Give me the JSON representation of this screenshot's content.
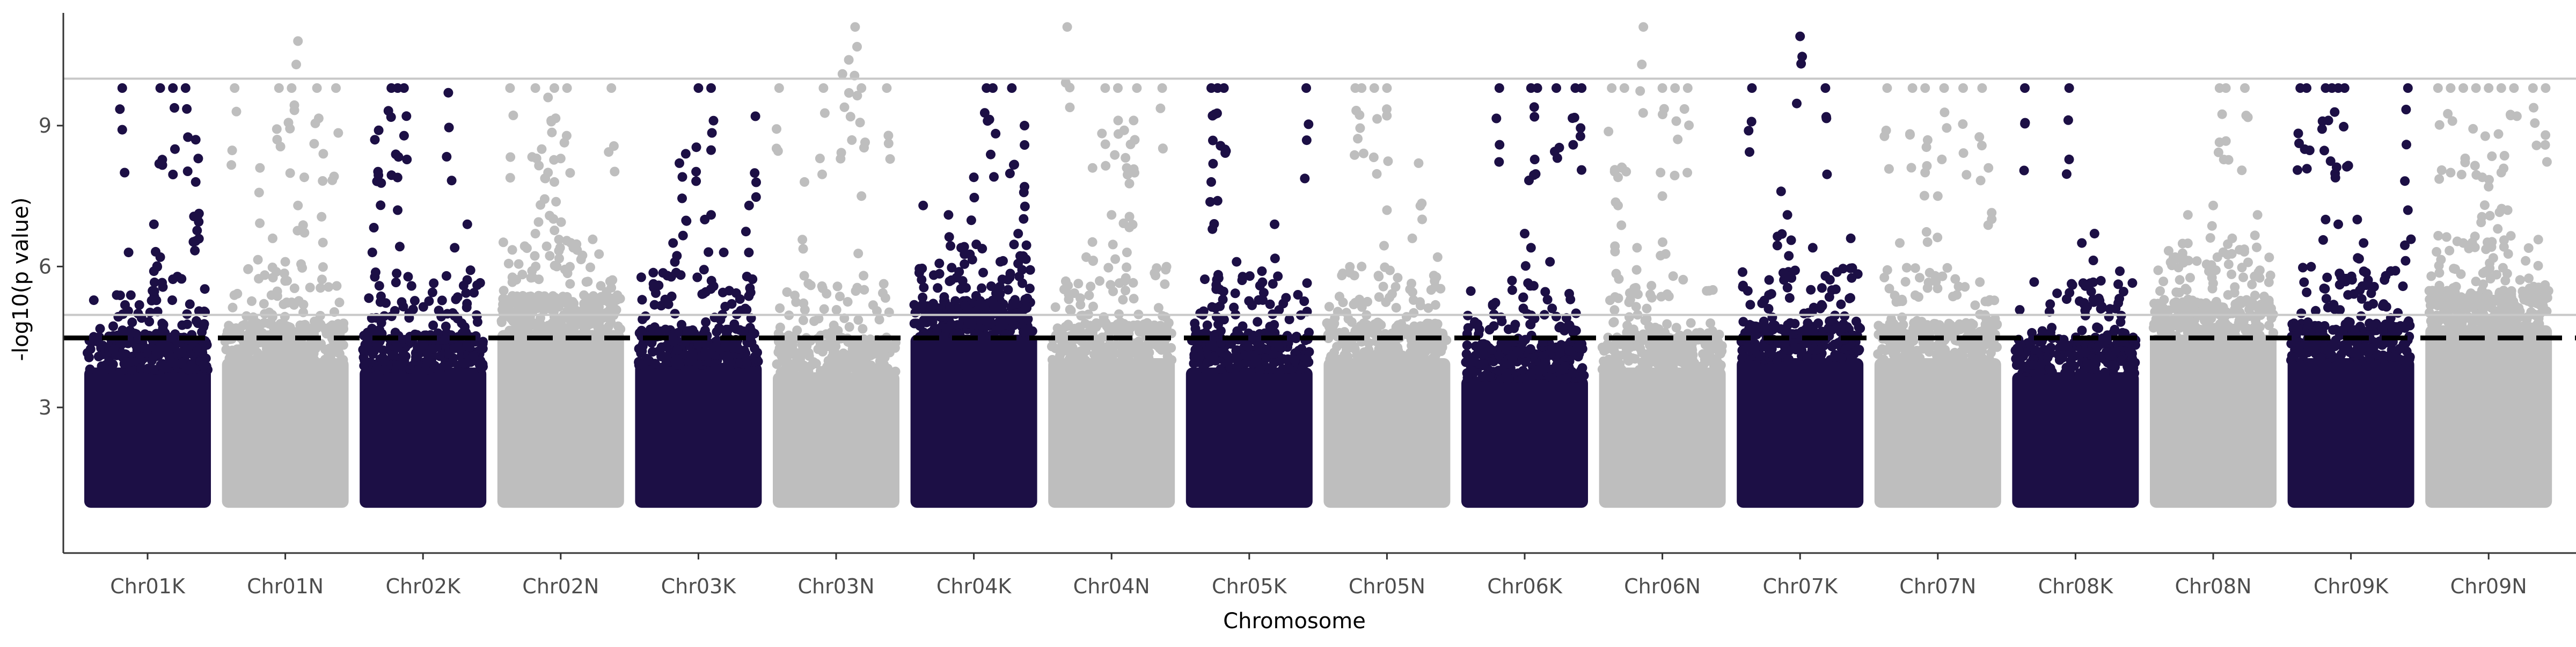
{
  "chart_data": {
    "type": "scatter",
    "subtype": "manhattan",
    "xlabel": "Chromosome",
    "ylabel": "-log10(p value)",
    "categories": [
      "Chr01K",
      "Chr01N",
      "Chr02K",
      "Chr02N",
      "Chr03K",
      "Chr03N",
      "Chr04K",
      "Chr04N",
      "Chr05K",
      "Chr05N",
      "Chr06K",
      "Chr06N",
      "Chr07K",
      "Chr07N",
      "Chr08K",
      "Chr08N",
      "Chr09K",
      "Chr09N"
    ],
    "y_ticks": [
      3,
      6,
      9
    ],
    "ylim": [
      -0.1,
      11.4
    ],
    "grid": false,
    "legend": "none",
    "point_colors": [
      "#1c0f45",
      "#bebebe"
    ],
    "reference_lines": [
      {
        "y": 10.0,
        "style": "solid",
        "color": "#c8c8c8"
      },
      {
        "y": 4.97,
        "style": "solid",
        "color": "#c8c8c8"
      },
      {
        "y": 4.48,
        "style": "dashed",
        "color": "#000000"
      }
    ],
    "series": [
      {
        "chromosome": "Chr01K",
        "max_dense": 4.4,
        "peaks": [
          [
            0.35,
            6.3
          ],
          [
            0.55,
            6.9
          ],
          [
            0.6,
            6.2
          ],
          [
            0.3,
            9.8
          ],
          [
            0.6,
            9.8
          ],
          [
            0.7,
            9.8
          ],
          [
            0.8,
            9.8
          ],
          [
            0.88,
            8.7
          ],
          [
            0.9,
            8.3
          ],
          [
            0.88,
            7.8
          ],
          [
            0.55,
            5.9
          ]
        ]
      },
      {
        "chromosome": "Chr01N",
        "max_dense": 4.6,
        "peaks": [
          [
            0.1,
            9.8
          ],
          [
            0.45,
            9.8
          ],
          [
            0.55,
            9.8
          ],
          [
            0.6,
            10.8
          ],
          [
            0.75,
            9.8
          ],
          [
            0.9,
            9.8
          ],
          [
            0.3,
            8.1
          ],
          [
            0.65,
            7.9
          ],
          [
            0.6,
            7.3
          ],
          [
            0.8,
            8.4
          ],
          [
            0.4,
            6.6
          ],
          [
            0.5,
            6.1
          ]
        ]
      },
      {
        "chromosome": "Chr02K",
        "max_dense": 4.4,
        "peaks": [
          [
            0.12,
            8.7
          ],
          [
            0.15,
            8.9
          ],
          [
            0.25,
            9.8
          ],
          [
            0.3,
            9.8
          ],
          [
            0.35,
            9.8
          ],
          [
            0.7,
            9.7
          ],
          [
            0.3,
            7.2
          ],
          [
            0.1,
            6.3
          ],
          [
            0.85,
            6.9
          ],
          [
            0.75,
            6.4
          ]
        ]
      },
      {
        "chromosome": "Chr02N",
        "max_dense": 5.2,
        "peaks": [
          [
            0.1,
            9.8
          ],
          [
            0.3,
            9.8
          ],
          [
            0.4,
            9.6
          ],
          [
            0.45,
            9.8
          ],
          [
            0.55,
            9.8
          ],
          [
            0.35,
            8.5
          ],
          [
            0.4,
            8.0
          ],
          [
            0.45,
            7.8
          ],
          [
            0.5,
            8.3
          ],
          [
            0.9,
            9.8
          ],
          [
            0.3,
            6.7
          ],
          [
            0.6,
            6.4
          ]
        ]
      },
      {
        "chromosome": "Chr03K",
        "max_dense": 4.5,
        "peaks": [
          [
            0.35,
            8.2
          ],
          [
            0.4,
            8.4
          ],
          [
            0.5,
            9.8
          ],
          [
            0.6,
            9.8
          ],
          [
            0.95,
            9.2
          ],
          [
            0.55,
            7.0
          ],
          [
            0.6,
            7.1
          ],
          [
            0.9,
            7.3
          ],
          [
            0.3,
            6.5
          ],
          [
            0.7,
            6.3
          ]
        ]
      },
      {
        "chromosome": "Chr03N",
        "max_dense": 4.3,
        "peaks": [
          [
            0.05,
            9.8
          ],
          [
            0.25,
            7.8
          ],
          [
            0.4,
            9.8
          ],
          [
            0.55,
            10.1
          ],
          [
            0.6,
            10.4
          ],
          [
            0.65,
            11.1
          ],
          [
            0.7,
            9.8
          ],
          [
            0.9,
            9.8
          ],
          [
            0.7,
            7.5
          ],
          [
            0.3,
            5.6
          ]
        ]
      },
      {
        "chromosome": "Chr04K",
        "max_dense": 5.1,
        "peaks": [
          [
            0.1,
            7.3
          ],
          [
            0.3,
            7.1
          ],
          [
            0.5,
            7.9
          ],
          [
            0.6,
            9.8
          ],
          [
            0.65,
            9.8
          ],
          [
            0.8,
            9.8
          ],
          [
            0.9,
            9.0
          ],
          [
            0.9,
            7.7
          ],
          [
            0.85,
            6.7
          ],
          [
            0.4,
            6.4
          ]
        ]
      },
      {
        "chromosome": "Chr04N",
        "max_dense": 4.6,
        "peaks": [
          [
            0.15,
            11.1
          ],
          [
            0.45,
            9.8
          ],
          [
            0.55,
            9.8
          ],
          [
            0.6,
            8.9
          ],
          [
            0.65,
            8.6
          ],
          [
            0.62,
            8.1
          ],
          [
            0.35,
            8.1
          ],
          [
            0.7,
            9.8
          ],
          [
            0.9,
            9.8
          ],
          [
            0.5,
            7.1
          ],
          [
            0.3,
            6.2
          ]
        ]
      },
      {
        "chromosome": "Chr05K",
        "max_dense": 4.4,
        "peaks": [
          [
            0.2,
            9.8
          ],
          [
            0.25,
            9.8
          ],
          [
            0.3,
            9.8
          ],
          [
            0.2,
            7.8
          ],
          [
            0.25,
            7.4
          ],
          [
            0.95,
            9.8
          ],
          [
            0.7,
            6.9
          ],
          [
            0.4,
            6.1
          ],
          [
            0.6,
            5.9
          ]
        ]
      },
      {
        "chromosome": "Chr05N",
        "max_dense": 4.6,
        "peaks": [
          [
            0.25,
            9.8
          ],
          [
            0.3,
            9.8
          ],
          [
            0.4,
            9.8
          ],
          [
            0.5,
            9.8
          ],
          [
            0.75,
            8.2
          ],
          [
            0.5,
            7.2
          ],
          [
            0.7,
            6.6
          ],
          [
            0.3,
            6.0
          ],
          [
            0.9,
            6.2
          ]
        ]
      },
      {
        "chromosome": "Chr06K",
        "max_dense": 4.2,
        "peaks": [
          [
            0.3,
            9.8
          ],
          [
            0.55,
            9.8
          ],
          [
            0.75,
            9.8
          ],
          [
            0.6,
            9.8
          ],
          [
            0.9,
            9.8
          ],
          [
            0.95,
            9.8
          ],
          [
            0.5,
            6.7
          ],
          [
            0.55,
            6.4
          ],
          [
            0.7,
            6.1
          ],
          [
            0.4,
            5.7
          ]
        ]
      },
      {
        "chromosome": "Chr06N",
        "max_dense": 4.4,
        "peaks": [
          [
            0.1,
            9.8
          ],
          [
            0.2,
            9.8
          ],
          [
            0.35,
            11.1
          ],
          [
            0.5,
            9.8
          ],
          [
            0.6,
            9.8
          ],
          [
            0.7,
            9.8
          ],
          [
            0.15,
            7.9
          ],
          [
            0.5,
            7.5
          ],
          [
            0.15,
            7.3
          ],
          [
            0.3,
            6.4
          ]
        ]
      },
      {
        "chromosome": "Chr07K",
        "max_dense": 4.6,
        "peaks": [
          [
            0.12,
            9.8
          ],
          [
            0.5,
            10.9
          ],
          [
            0.7,
            9.8
          ],
          [
            0.35,
            7.6
          ],
          [
            0.4,
            7.1
          ],
          [
            0.9,
            6.6
          ],
          [
            0.6,
            6.4
          ],
          [
            0.7,
            5.8
          ]
        ]
      },
      {
        "chromosome": "Chr07N",
        "max_dense": 4.6,
        "peaks": [
          [
            0.1,
            9.8
          ],
          [
            0.3,
            9.8
          ],
          [
            0.4,
            9.8
          ],
          [
            0.55,
            9.8
          ],
          [
            0.7,
            9.8
          ],
          [
            0.85,
            9.8
          ],
          [
            0.4,
            8.0
          ],
          [
            0.9,
            8.1
          ],
          [
            0.5,
            7.5
          ],
          [
            0.2,
            6.5
          ]
        ]
      },
      {
        "chromosome": "Chr08K",
        "max_dense": 4.3,
        "peaks": [
          [
            0.1,
            9.8
          ],
          [
            0.45,
            9.8
          ],
          [
            0.65,
            6.7
          ],
          [
            0.55,
            6.5
          ],
          [
            0.85,
            5.9
          ],
          [
            0.7,
            5.1
          ],
          [
            0.3,
            5.2
          ]
        ]
      },
      {
        "chromosome": "Chr08N",
        "max_dense": 5.1,
        "peaks": [
          [
            0.55,
            9.8
          ],
          [
            0.6,
            9.8
          ],
          [
            0.75,
            9.8
          ],
          [
            0.3,
            7.1
          ],
          [
            0.5,
            7.3
          ],
          [
            0.85,
            7.1
          ],
          [
            0.65,
            6.6
          ],
          [
            0.2,
            6.2
          ]
        ]
      },
      {
        "chromosome": "Chr09K",
        "max_dense": 4.6,
        "peaks": [
          [
            0.1,
            9.8
          ],
          [
            0.15,
            9.8
          ],
          [
            0.3,
            9.8
          ],
          [
            0.35,
            9.8
          ],
          [
            0.4,
            9.8
          ],
          [
            0.45,
            9.8
          ],
          [
            0.95,
            9.8
          ],
          [
            0.3,
            7.0
          ],
          [
            0.4,
            6.9
          ],
          [
            0.55,
            7.0
          ],
          [
            0.95,
            7.2
          ],
          [
            0.6,
            6.5
          ]
        ]
      },
      {
        "chromosome": "Chr09N",
        "max_dense": 5.3,
        "peaks": [
          [
            0.1,
            9.8
          ],
          [
            0.2,
            9.8
          ],
          [
            0.3,
            9.8
          ],
          [
            0.4,
            9.8
          ],
          [
            0.5,
            9.8
          ],
          [
            0.6,
            9.8
          ],
          [
            0.7,
            9.8
          ],
          [
            0.85,
            9.8
          ],
          [
            0.95,
            9.8
          ],
          [
            0.45,
            7.9
          ],
          [
            0.5,
            7.7
          ],
          [
            0.6,
            8.0
          ],
          [
            0.65,
            7.2
          ],
          [
            0.3,
            6.5
          ]
        ]
      }
    ]
  }
}
